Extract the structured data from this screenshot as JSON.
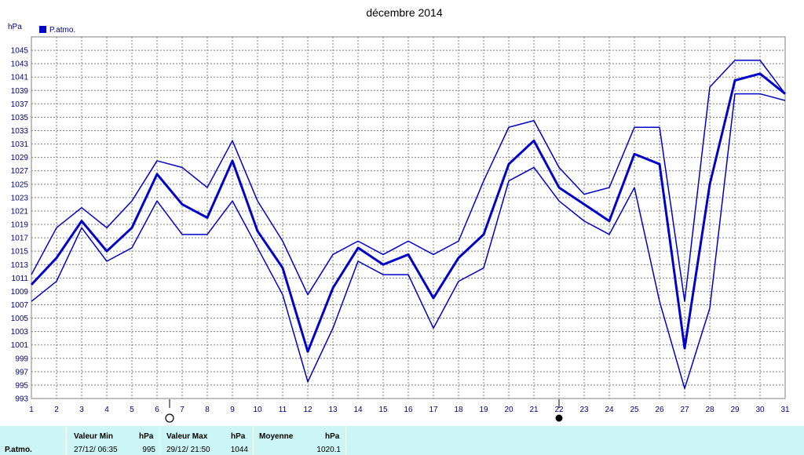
{
  "chart_data": {
    "type": "line",
    "title": "décembre 2014",
    "ylabel": "hPa",
    "ylim": [
      993,
      1047
    ],
    "y_ticks": [
      993,
      995,
      997,
      999,
      1001,
      1003,
      1005,
      1007,
      1009,
      1011,
      1013,
      1015,
      1017,
      1019,
      1021,
      1023,
      1025,
      1027,
      1029,
      1031,
      1033,
      1035,
      1037,
      1039,
      1041,
      1043,
      1045
    ],
    "x": [
      1,
      2,
      3,
      4,
      5,
      6,
      7,
      8,
      9,
      10,
      11,
      12,
      13,
      14,
      15,
      16,
      17,
      18,
      19,
      20,
      21,
      22,
      23,
      24,
      25,
      26,
      27,
      28,
      29,
      30,
      31
    ],
    "grid": true,
    "legend": "top-left",
    "legend_label": "P.atmo.",
    "colors": {
      "series": "#0000cc",
      "axis_text": "#000080",
      "grid": "#808080"
    },
    "moon_phases": [
      {
        "day": 6.5,
        "phase": "full-moon"
      },
      {
        "day": 22,
        "phase": "new-moon"
      }
    ],
    "series": [
      {
        "role": "max",
        "values": [
          1011.5,
          1018.5,
          1021.5,
          1018.5,
          1022.5,
          1028.5,
          1027.5,
          1024.5,
          1031.5,
          1022.5,
          1016.5,
          1008.5,
          1014.5,
          1016.5,
          1014.5,
          1016.5,
          1014.5,
          1016.5,
          1025.5,
          1033.5,
          1034.5,
          1027.5,
          1023.5,
          1024.5,
          1033.5,
          1033.5,
          1007.5,
          1039.5,
          1043.5,
          1043.5,
          1038.5
        ]
      },
      {
        "role": "mean",
        "name": "P.atmo.",
        "values": [
          1010,
          1014,
          1019.5,
          1015,
          1018.5,
          1026.5,
          1022,
          1020,
          1028.5,
          1018,
          1012.5,
          1000,
          1009.5,
          1015.5,
          1013,
          1014.5,
          1008,
          1014,
          1017.5,
          1028,
          1031.5,
          1024.5,
          1022,
          1019.5,
          1029.5,
          1028,
          1000.5,
          1025,
          1040.5,
          1041.5,
          1038.5
        ]
      },
      {
        "role": "min",
        "values": [
          1007.5,
          1010.5,
          1018.5,
          1013.5,
          1015.5,
          1022.5,
          1017.5,
          1017.5,
          1022.5,
          1015.5,
          1008.5,
          995.5,
          1003.5,
          1013.5,
          1011.5,
          1011.5,
          1003.5,
          1010.5,
          1012.5,
          1025.5,
          1027.5,
          1022.5,
          1019.5,
          1017.5,
          1024.5,
          1007.5,
          994.5,
          1006.5,
          1038.5,
          1038.5,
          1037.5
        ]
      }
    ]
  },
  "stats": {
    "row_label": "P.atmo.",
    "min_header": "Valeur Min",
    "min_unit": "hPa",
    "min_time": "27/12/  06:35",
    "min_value": "995",
    "max_header": "Valeur Max",
    "max_unit": "hPa",
    "max_time": "29/12/  21:50",
    "max_value": "1044",
    "avg_header": "Moyenne",
    "avg_unit": "hPa",
    "avg_value": "1020.1"
  }
}
